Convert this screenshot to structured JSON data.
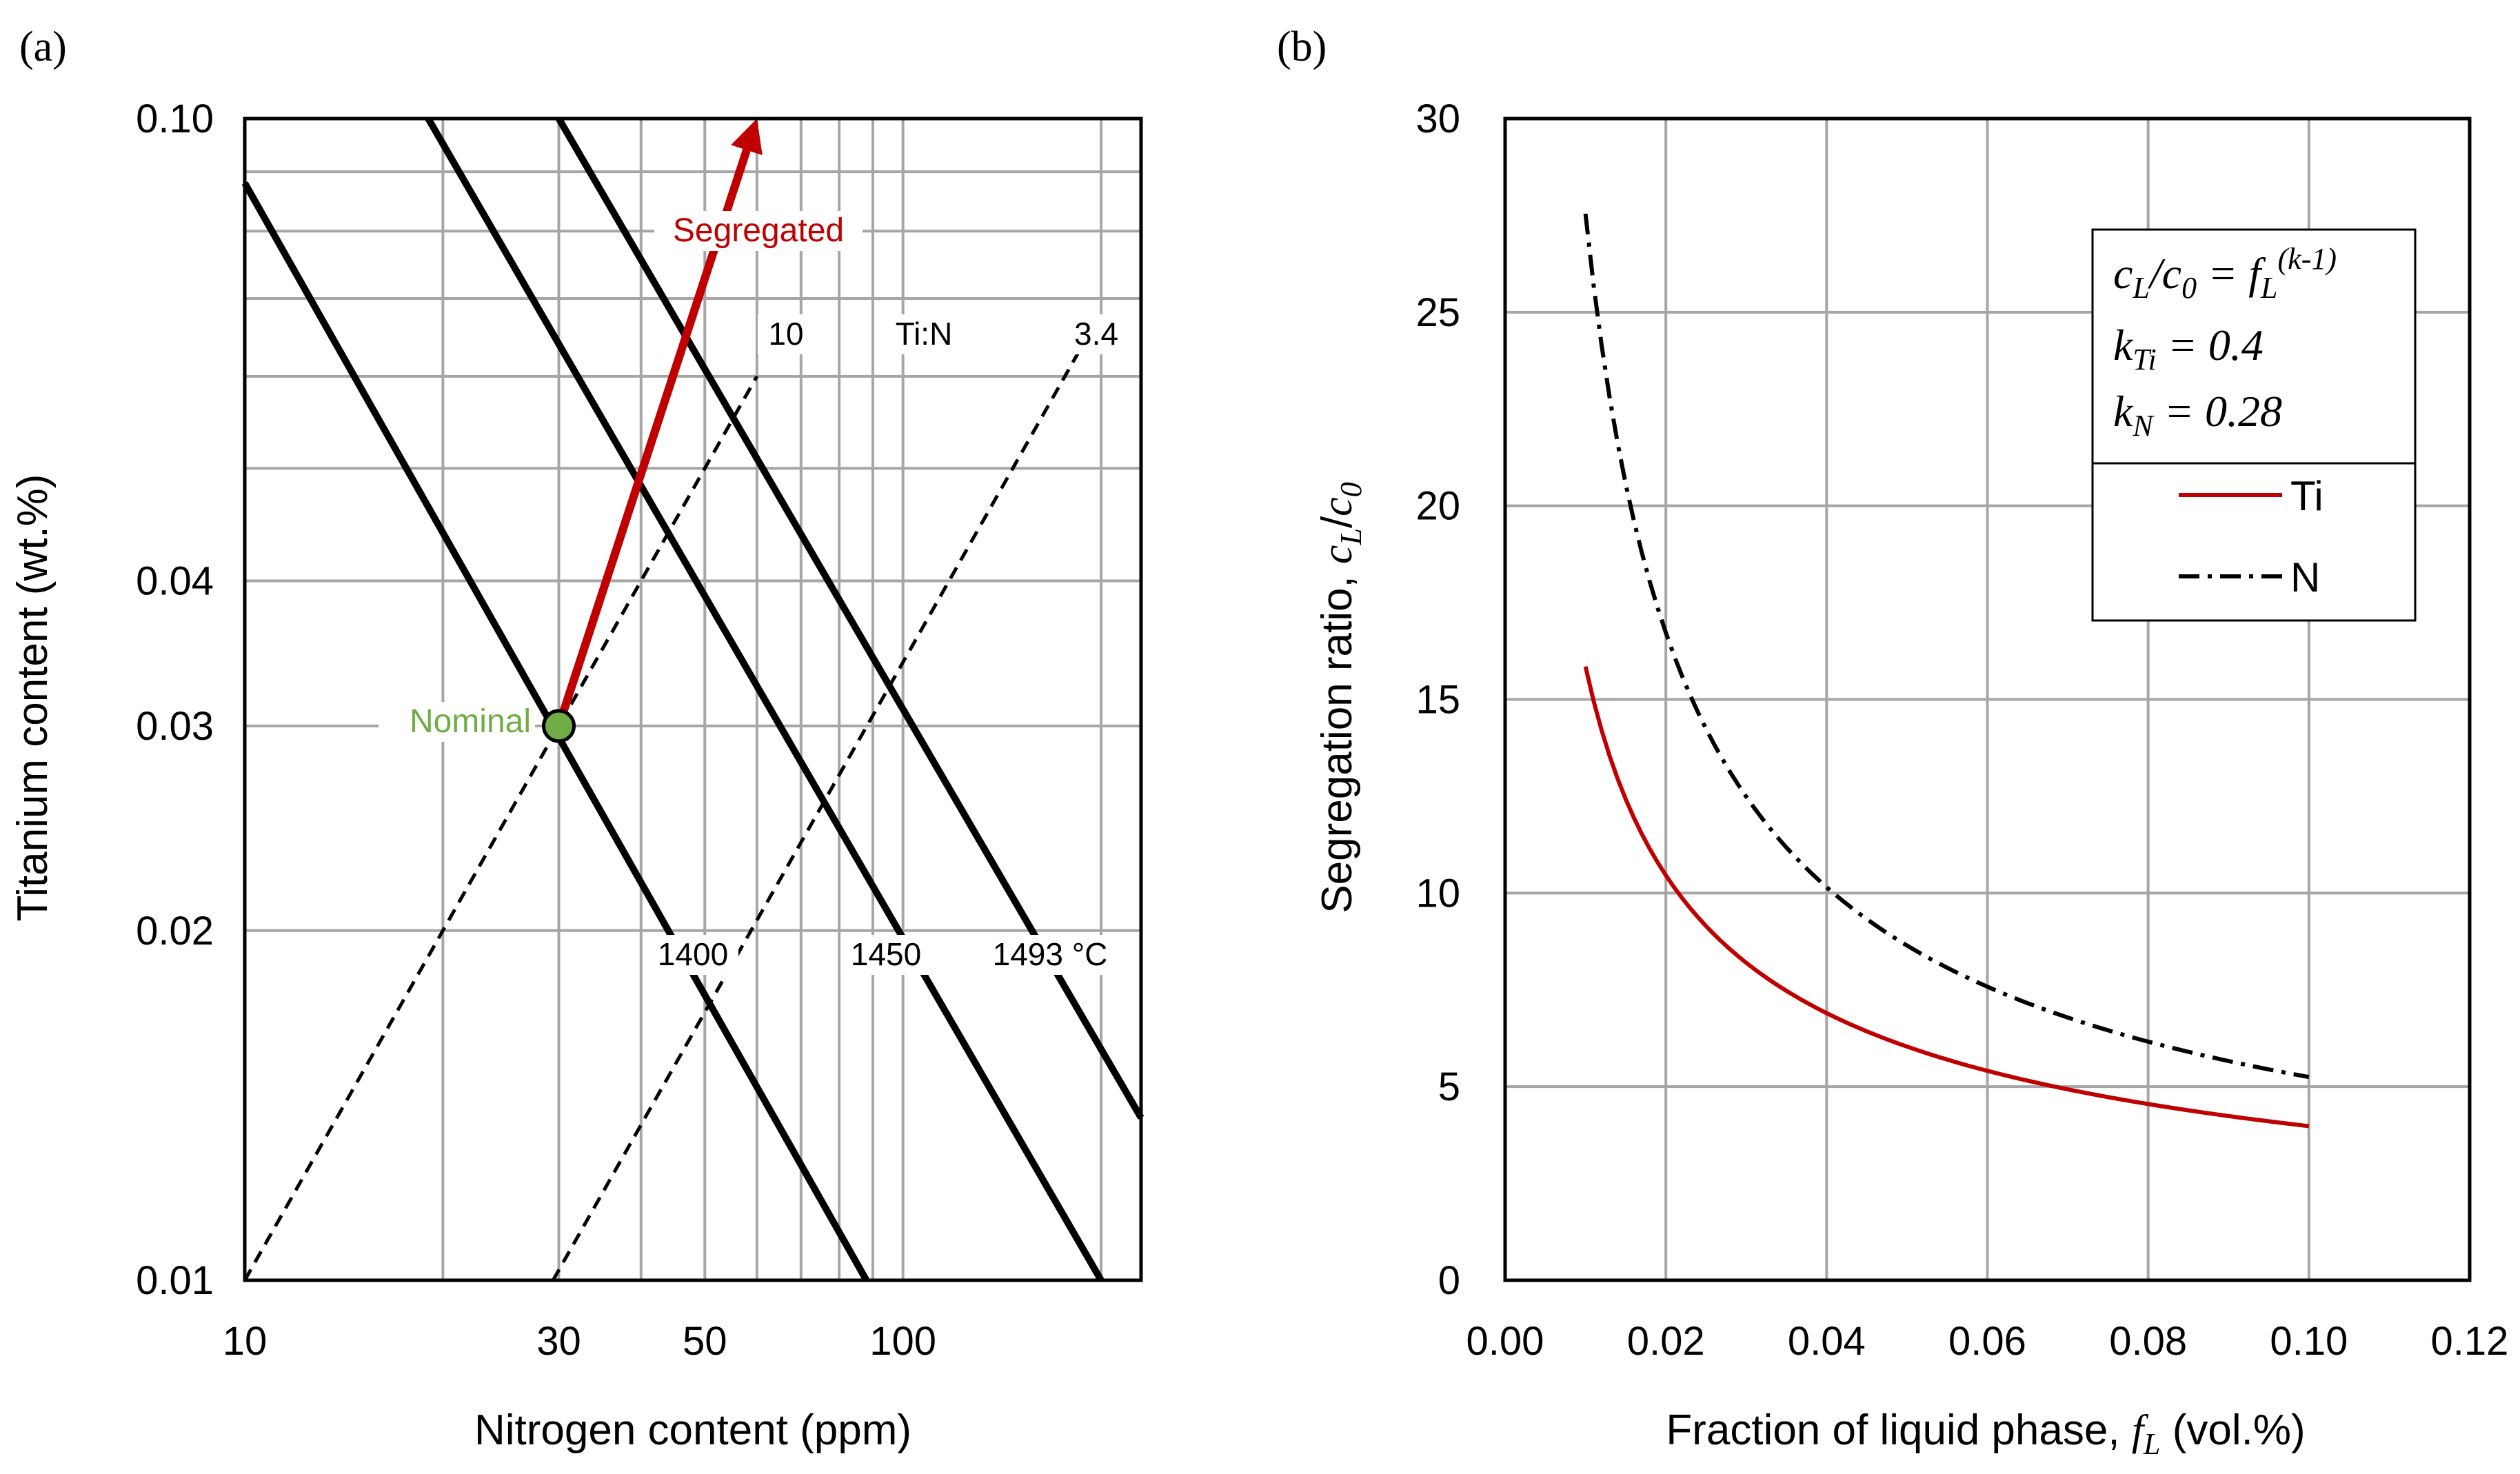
{
  "chart_data": [
    {
      "type": "line",
      "panel_label": "(a)",
      "xlabel": "Nitrogen content (ppm)",
      "ylabel": "Titanium content (wt.%)",
      "xscale": "log",
      "yscale": "log",
      "xlim": [
        10,
        230
      ],
      "ylim": [
        0.01,
        0.1
      ],
      "x_tick_labels": [
        {
          "value": 10,
          "label": "10"
        },
        {
          "value": 30,
          "label": "30"
        },
        {
          "value": 50,
          "label": "50"
        },
        {
          "value": 100,
          "label": "100"
        }
      ],
      "y_tick_labels": [
        {
          "value": 0.01,
          "label": "0.01"
        },
        {
          "value": 0.02,
          "label": "0.02"
        },
        {
          "value": 0.03,
          "label": "0.03"
        },
        {
          "value": 0.04,
          "label": "0.04"
        },
        {
          "value": 0.1,
          "label": "0.10"
        }
      ],
      "x_grid": [
        10,
        20,
        30,
        40,
        50,
        60,
        70,
        80,
        90,
        100,
        200
      ],
      "y_grid": [
        0.01,
        0.02,
        0.03,
        0.04,
        0.05,
        0.06,
        0.07,
        0.08,
        0.09,
        0.1
      ],
      "isotherms": [
        {
          "label": "1400",
          "points": [
            [
              10,
              0.088
            ],
            [
              88,
              0.01
            ]
          ]
        },
        {
          "label": "1450",
          "points": [
            [
              19,
              0.1
            ],
            [
              200,
              0.01
            ]
          ]
        },
        {
          "label": "1493 °C",
          "points": [
            [
              30,
              0.1
            ],
            [
              230,
              0.0138
            ]
          ]
        }
      ],
      "ratio_lines_label": "Ti:N",
      "ratio_lines": [
        {
          "label": "10",
          "points": [
            [
              10,
              0.01
            ],
            [
              60,
              0.06
            ]
          ]
        },
        {
          "label": "3.4",
          "points": [
            [
              29.4,
              0.01
            ],
            [
              185,
              0.063
            ]
          ]
        }
      ],
      "segregation_path": {
        "label": "Segregated",
        "from": [
          30,
          0.03
        ],
        "to": [
          60,
          0.1
        ]
      },
      "nominal_point": {
        "label": "Nominal",
        "x": 30,
        "y": 0.03
      },
      "colors": {
        "isotherm": "#000000",
        "ratio": "#000000",
        "segregated": "#c00000",
        "nominal": "#70ad47"
      }
    },
    {
      "type": "line",
      "panel_label": "(b)",
      "xlabel_text": "Fraction of liquid phase, ",
      "xlabel_var": "f",
      "xlabel_sub": "L",
      "xlabel_unit": " (vol.%)",
      "ylabel_text": "Segregation ratio, ",
      "ylabel_var1": "c",
      "ylabel_sub1": "L",
      "ylabel_slash": "/",
      "ylabel_var2": "c",
      "ylabel_sub2": "0",
      "xlim": [
        0,
        0.12
      ],
      "ylim": [
        0,
        30
      ],
      "x_tick_labels": [
        "0.00",
        "0.02",
        "0.04",
        "0.06",
        "0.08",
        "0.10",
        "0.12"
      ],
      "x_ticks": [
        0,
        0.02,
        0.04,
        0.06,
        0.08,
        0.1,
        0.12
      ],
      "y_tick_labels": [
        "0",
        "5",
        "10",
        "15",
        "20",
        "25",
        "30"
      ],
      "y_ticks": [
        0,
        5,
        10,
        15,
        20,
        25,
        30
      ],
      "formula": {
        "exponent": "(k-1)"
      },
      "parameters": [
        {
          "symbol": "k",
          "sub": "Ti",
          "value": " = 0.4"
        },
        {
          "symbol": "k",
          "sub": "N",
          "value": " = 0.28"
        }
      ],
      "series": [
        {
          "name": "Ti",
          "k": 0.4,
          "style": "solid",
          "color": "#c00000",
          "x": [
            0.01,
            0.02,
            0.03,
            0.04,
            0.05,
            0.06,
            0.07,
            0.08,
            0.09,
            0.1
          ],
          "values": [
            15.85,
            10.46,
            8.2,
            6.9,
            6.03,
            5.4,
            4.93,
            4.55,
            4.24,
            3.98
          ]
        },
        {
          "name": "N",
          "k": 0.28,
          "style": "dash-dot",
          "color": "#000000",
          "x": [
            0.01,
            0.02,
            0.03,
            0.04,
            0.05,
            0.06,
            0.07,
            0.08,
            0.09,
            0.1
          ],
          "values": [
            27.5,
            16.69,
            12.5,
            10.14,
            8.6,
            7.6,
            6.77,
            6.15,
            5.66,
            5.25
          ]
        }
      ]
    }
  ]
}
